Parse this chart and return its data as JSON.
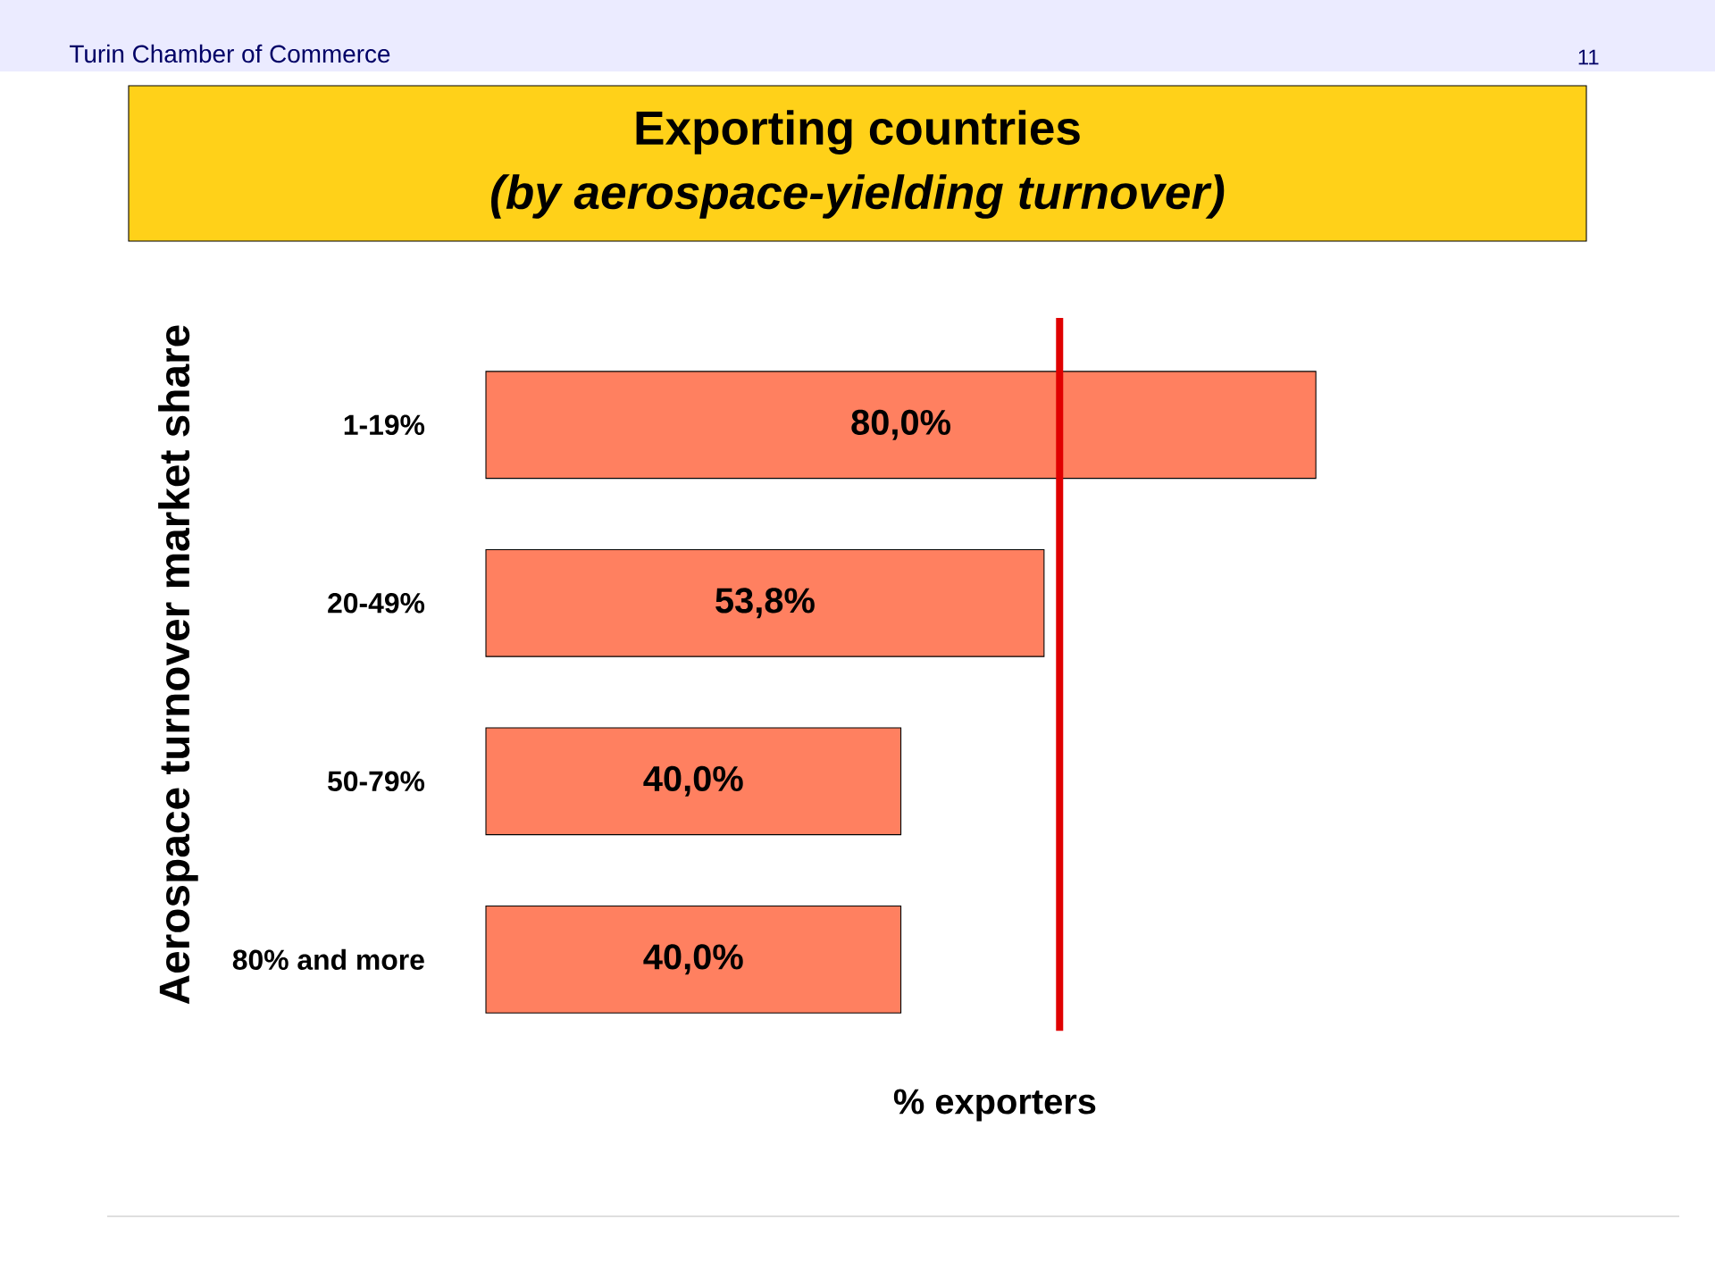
{
  "chart_data": {
    "type": "bar",
    "orientation": "horizontal",
    "title": "Exporting countries",
    "subtitle": "(by aerospace-yielding turnover)",
    "ylabel": "Aerospace turnover market share",
    "xlabel": "% exporters",
    "categories": [
      "1-19%",
      "20-49%",
      "50-79%",
      "80% and more"
    ],
    "values": [
      80.0,
      53.8,
      40.0,
      40.0
    ],
    "value_labels": [
      "80,0%",
      "53,8%",
      "40,0%",
      "40,0%"
    ],
    "color": "#ff8060",
    "ref_lines": [
      {
        "axis": "x",
        "value": 55.3,
        "color": "#e00000"
      }
    ],
    "tick_labels": "y",
    "annotations": [
      "Turin Chamber of Commerce",
      "11"
    ]
  }
}
